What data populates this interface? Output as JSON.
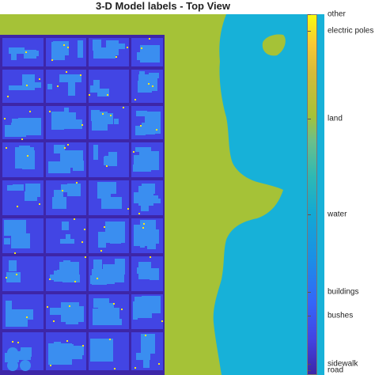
{
  "title": "3-D Model labels - Top View",
  "colors": {
    "road": "#3d26a8",
    "sidewalk": "#4245e4",
    "buildings": "#3a8ef0",
    "water": "#17b1d8",
    "land": "#a5c237",
    "electric_poles": "#f9e41a",
    "other": "#f9fb0e"
  },
  "colorbar": {
    "labels": [
      "other",
      "electric poles",
      "land",
      "water",
      "buildings",
      "bushes",
      "sidewalk",
      "road"
    ],
    "fractions": [
      1.0,
      0.955,
      0.71,
      0.445,
      0.23,
      0.165,
      0.03,
      -0.01
    ]
  }
}
